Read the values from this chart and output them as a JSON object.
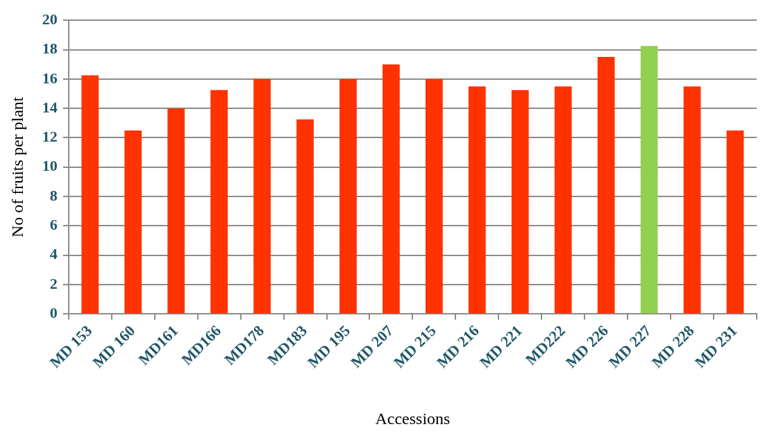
{
  "chart_data": {
    "type": "bar",
    "xlabel": "Accessions",
    "ylabel": "No of fruits per plant",
    "categories": [
      "MD 153",
      "MD 160",
      "MD161",
      "MD166",
      "MD178",
      "MD183",
      "MD 195",
      "MD 207",
      "MD 215",
      "MD 216",
      "MD 221",
      "MD222",
      "MD 226",
      "MD 227",
      "MD 228",
      "MD 231"
    ],
    "values": [
      16.25,
      12.5,
      14,
      15.25,
      16,
      13.25,
      16,
      17,
      16,
      15.5,
      15.25,
      15.5,
      17.5,
      18.25,
      15.5,
      12.5
    ],
    "colors": [
      "#ff3300",
      "#ff3300",
      "#ff3300",
      "#ff3300",
      "#ff3300",
      "#ff3300",
      "#ff3300",
      "#ff3300",
      "#ff3300",
      "#ff3300",
      "#ff3300",
      "#ff3300",
      "#ff3300",
      "#92d050",
      "#ff3300",
      "#ff3300"
    ],
    "ylim": [
      0,
      20
    ],
    "yticks": [
      0,
      2,
      4,
      6,
      8,
      10,
      12,
      14,
      16,
      18,
      20
    ],
    "grid": "y",
    "legend": false
  }
}
